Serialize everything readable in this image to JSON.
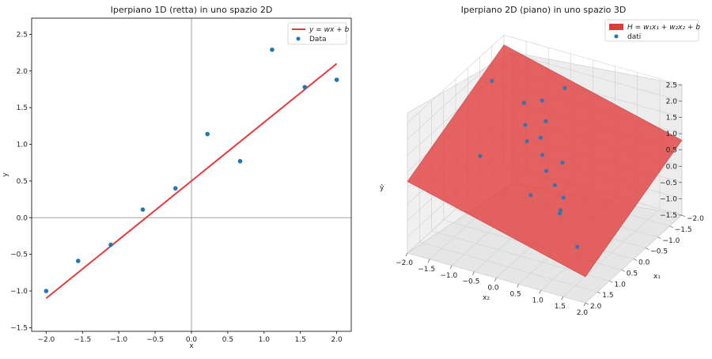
{
  "chart_data": [
    {
      "type": "line",
      "title": "Iperpiano 1D (retta) in uno spazio 2D",
      "xlabel": "x",
      "ylabel": "y",
      "xlim": [
        -2.2,
        2.2
      ],
      "ylim": [
        -1.55,
        2.72
      ],
      "xticks": [
        "−2.0",
        "−1.5",
        "−1.0",
        "−0.5",
        "0.0",
        "0.5",
        "1.0",
        "1.5",
        "2.0"
      ],
      "xtick_values": [
        -2.0,
        -1.5,
        -1.0,
        -0.5,
        0.0,
        0.5,
        1.0,
        1.5,
        2.0
      ],
      "yticks": [
        "−1.5",
        "−1.0",
        "−0.5",
        "0.0",
        "0.5",
        "1.0",
        "1.5",
        "2.0",
        "2.5"
      ],
      "ytick_values": [
        -1.5,
        -1.0,
        -0.5,
        0.0,
        0.5,
        1.0,
        1.5,
        2.0,
        2.5
      ],
      "legend_position": "top-right",
      "line": {
        "name": "y = wx + b",
        "x": [
          -2.0,
          2.0
        ],
        "y": [
          -1.1,
          2.1
        ],
        "color": "#e83a3a"
      },
      "points": {
        "name": "Data",
        "color": "#1f77b4",
        "x": [
          -2.0,
          -1.56,
          -1.11,
          -0.67,
          -0.22,
          0.22,
          0.67,
          1.11,
          1.56,
          2.0
        ],
        "y": [
          -1.0,
          -0.59,
          -0.37,
          0.11,
          0.4,
          1.14,
          0.77,
          2.29,
          1.78,
          1.88
        ]
      }
    },
    {
      "type": "scatter",
      "title": "Iperpiano 2D (piano) in uno spazio 3D",
      "x1label": "x₁",
      "x2label": "x₂",
      "zlabel": "ŷ",
      "x1ticks": [
        "−2.0",
        "−1.5",
        "−1.0",
        "−0.5",
        "0.0",
        "0.5",
        "1.0",
        "1.5",
        "2.0"
      ],
      "x1tick_values": [
        -2.0,
        -1.5,
        -1.0,
        -0.5,
        0.0,
        0.5,
        1.0,
        1.5,
        2.0
      ],
      "x2ticks": [
        "−2.0",
        "−1.5",
        "−1.0",
        "−0.5",
        "0.0",
        "0.5",
        "1.0",
        "1.5",
        "2.0"
      ],
      "x2tick_values": [
        -2.0,
        -1.5,
        -1.0,
        -0.5,
        0.0,
        0.5,
        1.0,
        1.5,
        2.0
      ],
      "zticks": [
        "−1.5",
        "−1.0",
        "−0.5",
        "0.0",
        "0.5",
        "1.0",
        "1.5",
        "2.0",
        "2.5"
      ],
      "ztick_values": [
        -1.5,
        -1.0,
        -0.5,
        0.0,
        0.5,
        1.0,
        1.5,
        2.0,
        2.5
      ],
      "legend_position": "top-right",
      "plane": {
        "name": "H = w₁x₁ + w₂x₂ + b",
        "color": "#e03a3a",
        "corners": [
          {
            "x1": -2,
            "x2": -2,
            "z": 2.2
          },
          {
            "x1": 2,
            "x2": -2,
            "z": 0.7
          },
          {
            "x1": 2,
            "x2": 2,
            "z": -0.7
          },
          {
            "x1": -2,
            "x2": 2,
            "z": 0.8
          }
        ]
      },
      "points": {
        "name": "dati",
        "color": "#1f77b4",
        "x1": [
          -1.2,
          -1.0,
          -0.8,
          -0.6,
          -0.3,
          -0.2,
          0.1,
          0.0,
          0.3,
          0.5,
          0.7,
          1.0,
          -0.4,
          0.0,
          1.2,
          1.5,
          1.4,
          1.6
        ],
        "x2": [
          -0.2,
          -0.6,
          -0.9,
          -0.3,
          -0.6,
          -0.2,
          0.0,
          0.4,
          0.2,
          0.5,
          0.8,
          0.9,
          -1.4,
          -0.4,
          -0.8,
          0.5,
          1.1,
          1.6
        ],
        "z": [
          2.1,
          1.7,
          1.65,
          1.45,
          1.42,
          1.25,
          1.0,
          0.85,
          0.72,
          0.53,
          0.4,
          0.25,
          2.4,
          1.2,
          1.4,
          0.9,
          0.5,
          -0.2
        ]
      }
    }
  ]
}
